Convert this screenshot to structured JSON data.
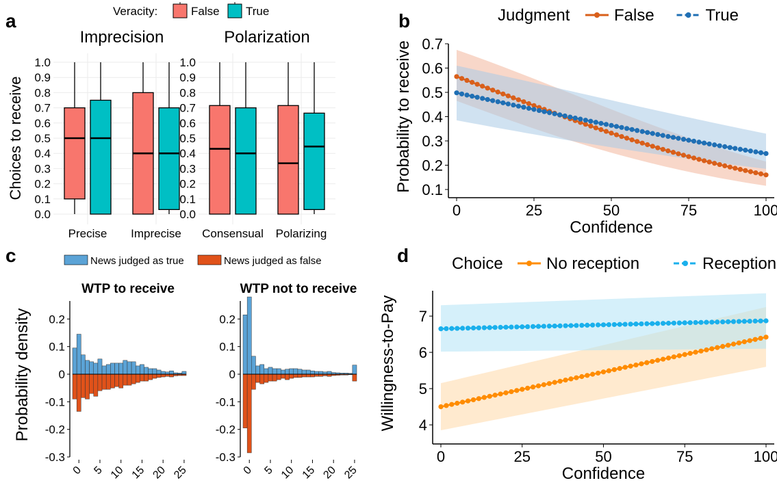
{
  "panel_labels": [
    "a",
    "b",
    "c",
    "d"
  ],
  "chart_data": [
    {
      "panel": "a",
      "type": "box",
      "legend": {
        "title": "Veracity:",
        "placement": "top",
        "entries": [
          {
            "name": "False",
            "color": "#f8766d"
          },
          {
            "name": "True",
            "color": "#00bfc4"
          }
        ]
      },
      "ylabel": "Choices to receive",
      "ylim": [
        0,
        1
      ],
      "yticks": [
        "0.0",
        "0.1",
        "0.2",
        "0.3",
        "0.4",
        "0.5",
        "0.6",
        "0.7",
        "0.8",
        "0.9",
        "1.0"
      ],
      "facets": [
        {
          "title": "Imprecision",
          "categories": [
            "Precise",
            "Imprecise"
          ],
          "boxes": [
            {
              "category": "Precise",
              "series": "False",
              "min": 0,
              "q1": 0.1,
              "median": 0.5,
              "q3": 0.7,
              "max": 1.0
            },
            {
              "category": "Precise",
              "series": "True",
              "min": 0,
              "q1": 0.0,
              "median": 0.5,
              "q3": 0.75,
              "max": 1.0
            },
            {
              "category": "Imprecise",
              "series": "False",
              "min": 0,
              "q1": 0.0,
              "median": 0.4,
              "q3": 0.8,
              "max": 1.0
            },
            {
              "category": "Imprecise",
              "series": "True",
              "min": 0,
              "q1": 0.03,
              "median": 0.4,
              "q3": 0.7,
              "max": 1.0
            }
          ]
        },
        {
          "title": "Polarization",
          "categories": [
            "Consensual",
            "Polarizing"
          ],
          "boxes": [
            {
              "category": "Consensual",
              "series": "False",
              "min": 0,
              "q1": 0.0,
              "median": 0.43,
              "q3": 0.715,
              "max": 1.0
            },
            {
              "category": "Consensual",
              "series": "True",
              "min": 0,
              "q1": 0.0,
              "median": 0.4,
              "q3": 0.7,
              "max": 1.0
            },
            {
              "category": "Polarizing",
              "series": "False",
              "min": 0,
              "q1": 0.0,
              "median": 0.335,
              "q3": 0.715,
              "max": 1.0
            },
            {
              "category": "Polarizing",
              "series": "True",
              "min": 0,
              "q1": 0.03,
              "median": 0.445,
              "q3": 0.665,
              "max": 1.0
            }
          ]
        }
      ]
    },
    {
      "panel": "b",
      "type": "line",
      "legend": {
        "title": "Judgment",
        "placement": "top"
      },
      "xlabel": "Confidence",
      "ylabel": "Probability to receive",
      "xlim": [
        0,
        100
      ],
      "ylim": [
        0.1,
        0.7
      ],
      "xticks": [
        "0",
        "25",
        "50",
        "75",
        "100"
      ],
      "yticks": [
        "0.1",
        "0.2",
        "0.3",
        "0.4",
        "0.5",
        "0.6",
        "0.7"
      ],
      "series": [
        {
          "name": "False",
          "color": "#d95f1a",
          "band": "#f2b79c",
          "start": 0.565,
          "end": 0.16,
          "curve": "logistic",
          "ci_low": [
            0.465,
            0.115
          ],
          "ci_high": [
            0.675,
            0.215
          ]
        },
        {
          "name": "True",
          "color": "#1f6fb4",
          "band": "#a9cbe6",
          "start": 0.498,
          "end": 0.248,
          "curve": "logistic",
          "ci_low": [
            0.385,
            0.185
          ],
          "ci_high": [
            0.61,
            0.33
          ]
        }
      ]
    },
    {
      "panel": "c",
      "type": "bar",
      "legend": {
        "placement": "top",
        "entries": [
          {
            "name": "News judged as true",
            "color": "#5ba3d6"
          },
          {
            "name": "News judged as false",
            "color": "#e0521a"
          }
        ]
      },
      "ylabel": "Probability density",
      "ylim": [
        -0.3,
        0.3
      ],
      "yticks": [
        "0.2",
        "0.1",
        "0",
        "-0.1",
        "-0.2",
        "-0.3"
      ],
      "xticks": [
        "0",
        "5",
        "10",
        "15",
        "20",
        "25"
      ],
      "x_bins": [
        -1,
        0,
        1,
        2,
        3,
        4,
        5,
        6,
        7,
        8,
        9,
        10,
        11,
        12,
        13,
        14,
        15,
        16,
        17,
        18,
        19,
        20,
        21,
        22,
        23,
        24,
        25
      ],
      "facets": [
        {
          "title": "WTP to receive",
          "true_values": [
            0.095,
            0.145,
            0.07,
            0.05,
            0.045,
            0.04,
            0.055,
            0.03,
            0.035,
            0.04,
            0.04,
            0.04,
            0.05,
            0.045,
            0.045,
            0.03,
            0.035,
            0.025,
            0.02,
            0.02,
            0.015,
            0.01,
            0.008,
            0.012,
            0.005,
            0.004,
            0.01
          ],
          "false_values": [
            -0.09,
            -0.135,
            -0.085,
            -0.09,
            -0.07,
            -0.08,
            -0.06,
            -0.055,
            -0.055,
            -0.05,
            -0.045,
            -0.05,
            -0.04,
            -0.04,
            -0.035,
            -0.03,
            -0.025,
            -0.025,
            -0.02,
            -0.015,
            -0.012,
            -0.01,
            -0.008,
            -0.01,
            -0.006,
            -0.005,
            -0.005
          ]
        },
        {
          "title": "WTP not to receive",
          "true_values": [
            0.215,
            0.28,
            0.065,
            0.03,
            0.035,
            0.02,
            0.025,
            0.02,
            0.02,
            0.015,
            0.018,
            0.02,
            0.02,
            0.018,
            0.015,
            0.015,
            0.012,
            0.01,
            0.01,
            0.008,
            0.01,
            0.006,
            0.005,
            0.004,
            0.004,
            0.003,
            0.033
          ],
          "false_values": [
            -0.195,
            -0.285,
            -0.055,
            -0.03,
            -0.035,
            -0.03,
            -0.025,
            -0.025,
            -0.02,
            -0.015,
            -0.02,
            -0.015,
            -0.012,
            -0.012,
            -0.01,
            -0.01,
            -0.01,
            -0.008,
            -0.008,
            -0.006,
            -0.008,
            -0.005,
            -0.004,
            -0.003,
            -0.003,
            -0.002,
            -0.025
          ]
        }
      ]
    },
    {
      "panel": "d",
      "type": "line",
      "legend": {
        "title": "Choice",
        "placement": "top"
      },
      "xlabel": "Confidence",
      "ylabel": "Willingness-to-Pay",
      "xlim": [
        0,
        100
      ],
      "ylim": [
        3.7,
        7.7
      ],
      "xticks": [
        "0",
        "25",
        "50",
        "75",
        "100"
      ],
      "yticks": [
        "4",
        "5",
        "6",
        "7"
      ],
      "series": [
        {
          "name": "No reception",
          "color": "#ff8c00",
          "band": "#ffd9a8",
          "start": 4.5,
          "end": 6.42,
          "curve": "linear",
          "ci_low": [
            3.85,
            5.6
          ],
          "ci_high": [
            5.15,
            7.25
          ]
        },
        {
          "name": "Reception",
          "color": "#1ab0ec",
          "band": "#b3e3f6",
          "start": 6.65,
          "end": 6.87,
          "curve": "linear",
          "ci_low": [
            6.02,
            6.1
          ],
          "ci_high": [
            7.3,
            7.63
          ]
        }
      ]
    }
  ]
}
